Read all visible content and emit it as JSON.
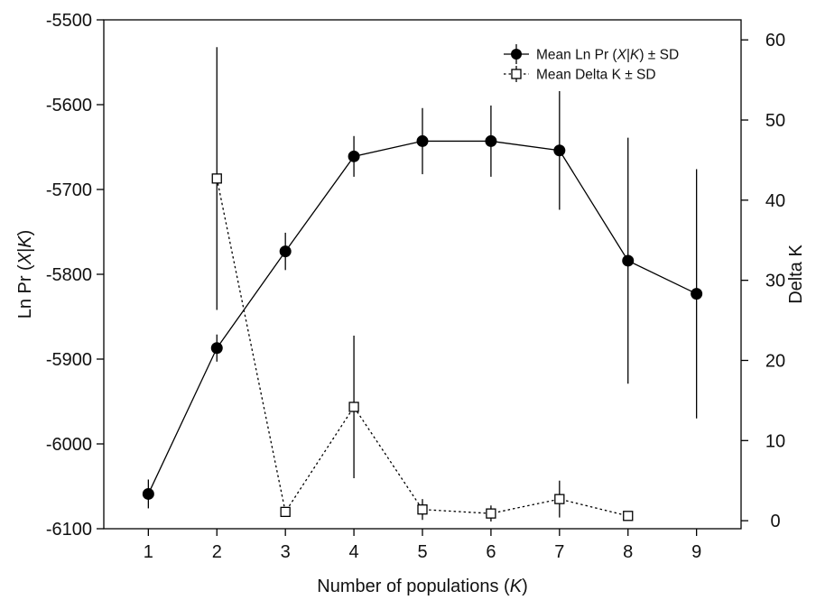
{
  "chart_data": {
    "type": "line",
    "xlabel": [
      "Number of populations (",
      "K",
      ")"
    ],
    "ylabel_left": [
      "Ln Pr (",
      "X",
      "|",
      "K",
      ")"
    ],
    "ylabel_right": "Delta K",
    "x_ticks": [
      1,
      2,
      3,
      4,
      5,
      6,
      7,
      8,
      9
    ],
    "xlim": [
      0.35,
      9.65
    ],
    "y_left": {
      "lim": [
        -6100,
        -5500
      ],
      "ticks": [
        -5500,
        -5600,
        -5700,
        -5800,
        -5900,
        -6000,
        -6100
      ]
    },
    "y_right": {
      "lim": [
        -1.0,
        62.5
      ],
      "ticks": [
        0,
        10,
        20,
        30,
        40,
        50,
        60
      ]
    },
    "legend_position": "top-right",
    "series": [
      {
        "name": [
          "Mean Ln Pr (",
          "X",
          "|",
          "K",
          ") ± SD"
        ],
        "axis": "left",
        "marker": "filled-circle",
        "line": "solid",
        "color": "#000000",
        "x": [
          1,
          2,
          3,
          4,
          5,
          6,
          7,
          8,
          9
        ],
        "y": [
          -6059,
          -5887,
          -5773,
          -5661,
          -5643,
          -5643,
          -5654,
          -5784,
          -5823
        ],
        "sd": [
          17,
          16,
          22,
          24,
          39,
          42,
          70,
          145,
          147
        ]
      },
      {
        "name": "Mean Delta K  ± SD",
        "axis": "right",
        "marker": "open-square",
        "line": "dotted",
        "color": "#000000",
        "x": [
          2,
          3,
          4,
          5,
          6,
          7,
          8
        ],
        "y": [
          42.7,
          1.1,
          14.2,
          1.4,
          0.9,
          2.7,
          0.6
        ],
        "sd": [
          16.4,
          0.0,
          8.9,
          1.3,
          1.0,
          2.3,
          0.0
        ]
      }
    ]
  }
}
